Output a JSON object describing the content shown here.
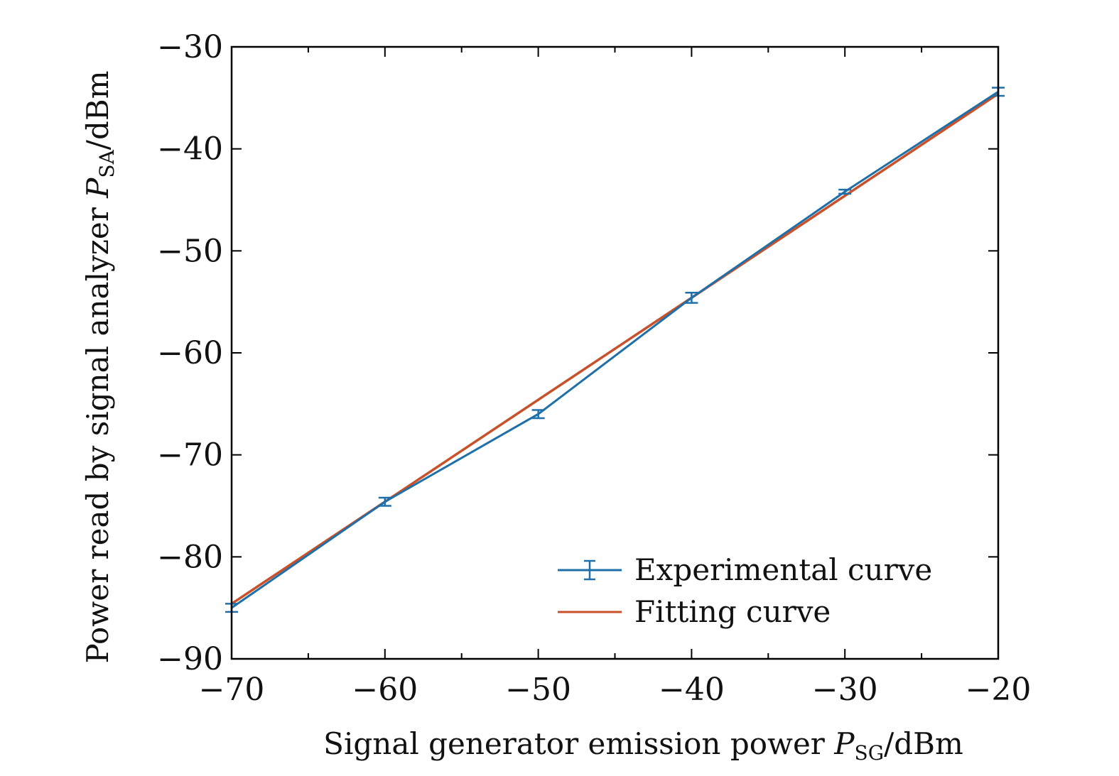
{
  "chart_data": {
    "type": "line",
    "title": "",
    "xlabel_prefix": "Signal generator emission power ",
    "xlabel_symbol": "P",
    "xlabel_sub": "SG",
    "xlabel_suffix": "/dBm",
    "ylabel_prefix": "Power read by signal analyzer ",
    "ylabel_symbol": "P",
    "ylabel_sub": "SA",
    "ylabel_suffix": "/dBm",
    "xlim": [
      -70,
      -20
    ],
    "ylim": [
      -90,
      -30
    ],
    "xticks": [
      -70,
      -60,
      -50,
      -40,
      -30,
      -20
    ],
    "yticks": [
      -30,
      -40,
      -50,
      -60,
      -70,
      -80,
      -90
    ],
    "xtick_labels": [
      "−70",
      "−60",
      "−50",
      "−40",
      "−30",
      "−20"
    ],
    "ytick_labels": [
      "−30",
      "−40",
      "−50",
      "−60",
      "−70",
      "−80",
      "−90"
    ],
    "grid": false,
    "legend_position": "bottom-right",
    "series": [
      {
        "name": "Experimental curve",
        "color": "#1f6fa8",
        "x": [
          -70,
          -60,
          -50,
          -40,
          -30,
          -20
        ],
        "y": [
          -85.0,
          -74.6,
          -66.0,
          -54.6,
          -44.2,
          -34.4
        ],
        "err": [
          0.4,
          0.4,
          0.4,
          0.5,
          0.2,
          0.4
        ]
      },
      {
        "name": "Fitting curve",
        "color": "#c8502a",
        "x": [
          -70,
          -20
        ],
        "y": [
          -84.6,
          -34.6
        ]
      }
    ]
  }
}
